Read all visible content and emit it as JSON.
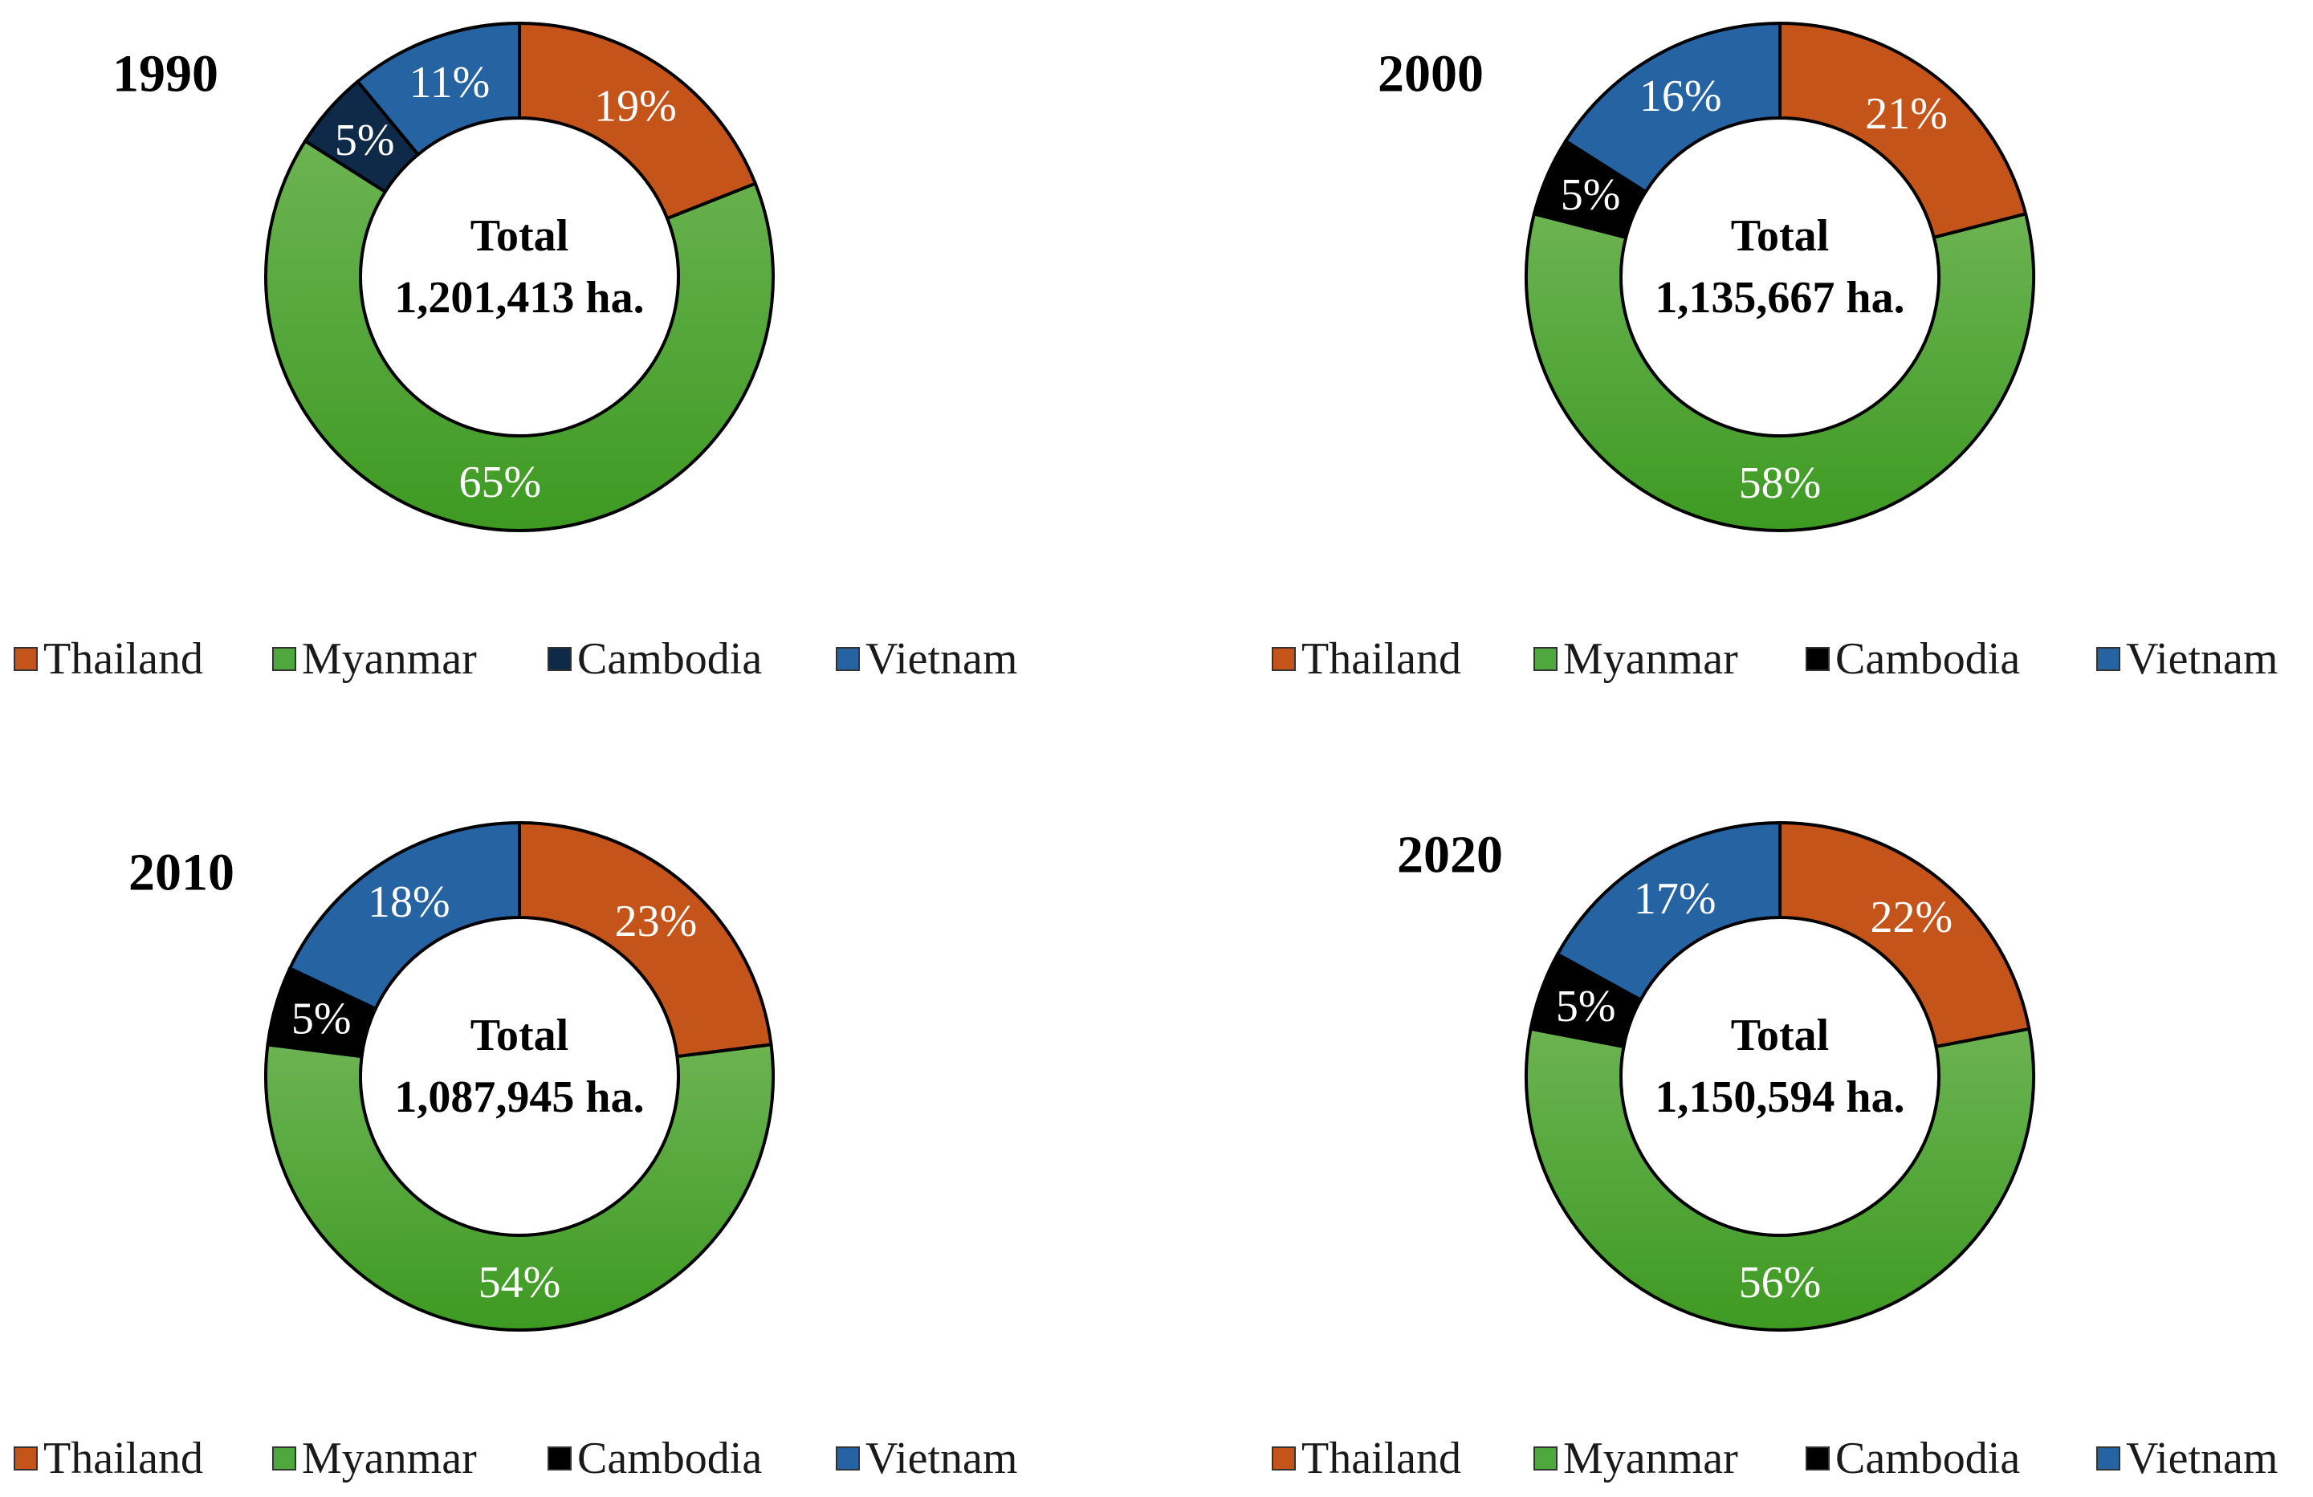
{
  "chart_data": [
    {
      "type": "pie",
      "title": "1990",
      "center_label": "Total",
      "total": "1,201,413 ha.",
      "categories": [
        "Thailand",
        "Myanmar",
        "Cambodia",
        "Vietnam"
      ],
      "values": [
        19,
        65,
        5,
        11
      ],
      "labels": [
        "19%",
        "65%",
        "5%",
        "11%"
      ],
      "colors": [
        "#c5541a",
        "#4fa83d",
        "#0f2a48",
        "#2563a3"
      ],
      "legend": "bottom"
    },
    {
      "type": "pie",
      "title": "2000",
      "center_label": "Total",
      "total": "1,135,667 ha.",
      "categories": [
        "Thailand",
        "Myanmar",
        "Cambodia",
        "Vietnam"
      ],
      "values": [
        21,
        58,
        5,
        16
      ],
      "labels": [
        "21%",
        "58%",
        "5%",
        "16%"
      ],
      "colors": [
        "#c5541a",
        "#4fa83d",
        "#000000",
        "#2563a3"
      ],
      "legend": "bottom"
    },
    {
      "type": "pie",
      "title": "2010",
      "center_label": "Total",
      "total": "1,087,945 ha.",
      "categories": [
        "Thailand",
        "Myanmar",
        "Cambodia",
        "Vietnam"
      ],
      "values": [
        23,
        54,
        5,
        18
      ],
      "labels": [
        "23%",
        "54%",
        "5%",
        "18%"
      ],
      "colors": [
        "#c5541a",
        "#4fa83d",
        "#000000",
        "#2563a3"
      ],
      "legend": "bottom"
    },
    {
      "type": "pie",
      "title": "2020",
      "center_label": "Total",
      "total": "1,150,594 ha.",
      "categories": [
        "Thailand",
        "Myanmar",
        "Cambodia",
        "Vietnam"
      ],
      "values": [
        22,
        56,
        5,
        17
      ],
      "labels": [
        "22%",
        "56%",
        "5%",
        "17%"
      ],
      "colors": [
        "#c5541a",
        "#4fa83d",
        "#000000",
        "#2563a3"
      ],
      "legend": "bottom"
    }
  ]
}
